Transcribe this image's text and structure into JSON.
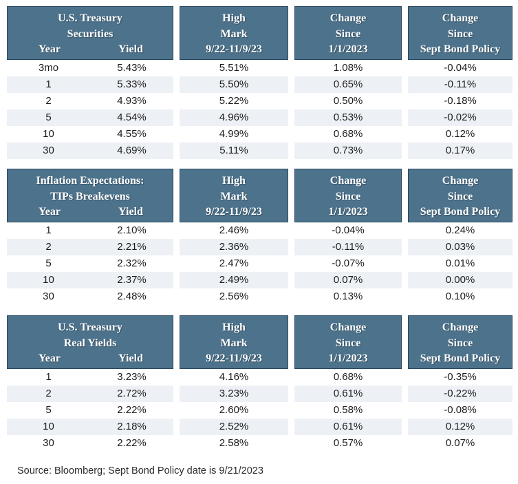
{
  "colors": {
    "header_bg": "#4d738c",
    "header_border": "#27455f",
    "header_text": "#ffffff",
    "row_stripe": "#edf1f6",
    "data_text": "#1c1c1c",
    "background": "#ffffff"
  },
  "source_note": "Source: Bloomberg; Sept Bond Policy date is 9/21/2023",
  "chart_data": [
    {
      "type": "table",
      "title": "U.S. Treasury Securities",
      "title_lines": [
        "U.S. Treasury",
        "Securities"
      ],
      "sub_headers": {
        "year": "Year",
        "yield": "Yield"
      },
      "columns": [
        "Year",
        "Yield",
        "High Mark 9/22-11/9/23",
        "Change Since 1/1/2023",
        "Change Since Sept Bond Policy"
      ],
      "col_groups": [
        [
          "High",
          "Mark",
          "9/22-11/9/23"
        ],
        [
          "Change",
          "Since",
          "1/1/2023"
        ],
        [
          "Change",
          "Since",
          "Sept Bond Policy"
        ]
      ],
      "rows": [
        [
          "3mo",
          "5.43%",
          "5.51%",
          "1.08%",
          "-0.04%"
        ],
        [
          "1",
          "5.33%",
          "5.50%",
          "0.65%",
          "-0.11%"
        ],
        [
          "2",
          "4.93%",
          "5.22%",
          "0.50%",
          "-0.18%"
        ],
        [
          "5",
          "4.54%",
          "4.96%",
          "0.53%",
          "-0.02%"
        ],
        [
          "10",
          "4.55%",
          "4.99%",
          "0.68%",
          "0.12%"
        ],
        [
          "30",
          "4.69%",
          "5.11%",
          "0.73%",
          "0.17%"
        ]
      ]
    },
    {
      "type": "table",
      "title": "Inflation Expectations: TIPs Breakevens",
      "title_lines": [
        "Inflation Expectations:",
        "TIPs Breakevens"
      ],
      "sub_headers": {
        "year": "Year",
        "yield": "Yield"
      },
      "columns": [
        "Year",
        "Yield",
        "High Mark 9/22-11/9/23",
        "Change Since 1/1/2023",
        "Change Since Sept Bond Policy"
      ],
      "col_groups": [
        [
          "High",
          "Mark",
          "9/22-11/9/23"
        ],
        [
          "Change",
          "Since",
          "1/1/2023"
        ],
        [
          "Change",
          "Since",
          "Sept Bond Policy"
        ]
      ],
      "rows": [
        [
          "1",
          "2.10%",
          "2.46%",
          "-0.04%",
          "0.24%"
        ],
        [
          "2",
          "2.21%",
          "2.36%",
          "-0.11%",
          "0.03%"
        ],
        [
          "5",
          "2.32%",
          "2.47%",
          "-0.07%",
          "0.01%"
        ],
        [
          "10",
          "2.37%",
          "2.49%",
          "0.07%",
          "0.00%"
        ],
        [
          "30",
          "2.48%",
          "2.56%",
          "0.13%",
          "0.10%"
        ]
      ]
    },
    {
      "type": "table",
      "title": "U.S. Treasury Real Yields",
      "title_lines": [
        "U.S. Treasury",
        "Real Yields"
      ],
      "sub_headers": {
        "year": "Year",
        "yield": "Yield"
      },
      "columns": [
        "Year",
        "Yield",
        "High Mark 9/22-11/9/23",
        "Change Since 1/1/2023",
        "Change Since Sept Bond Policy"
      ],
      "col_groups": [
        [
          "High",
          "Mark",
          "9/22-11/9/23"
        ],
        [
          "Change",
          "Since",
          "1/1/2023"
        ],
        [
          "Change",
          "Since",
          "Sept Bond Policy"
        ]
      ],
      "rows": [
        [
          "1",
          "3.23%",
          "4.16%",
          "0.68%",
          "-0.35%"
        ],
        [
          "2",
          "2.72%",
          "3.23%",
          "0.61%",
          "-0.22%"
        ],
        [
          "5",
          "2.22%",
          "2.60%",
          "0.58%",
          "-0.08%"
        ],
        [
          "10",
          "2.18%",
          "2.52%",
          "0.61%",
          "0.12%"
        ],
        [
          "30",
          "2.22%",
          "2.58%",
          "0.57%",
          "0.07%"
        ]
      ]
    }
  ]
}
